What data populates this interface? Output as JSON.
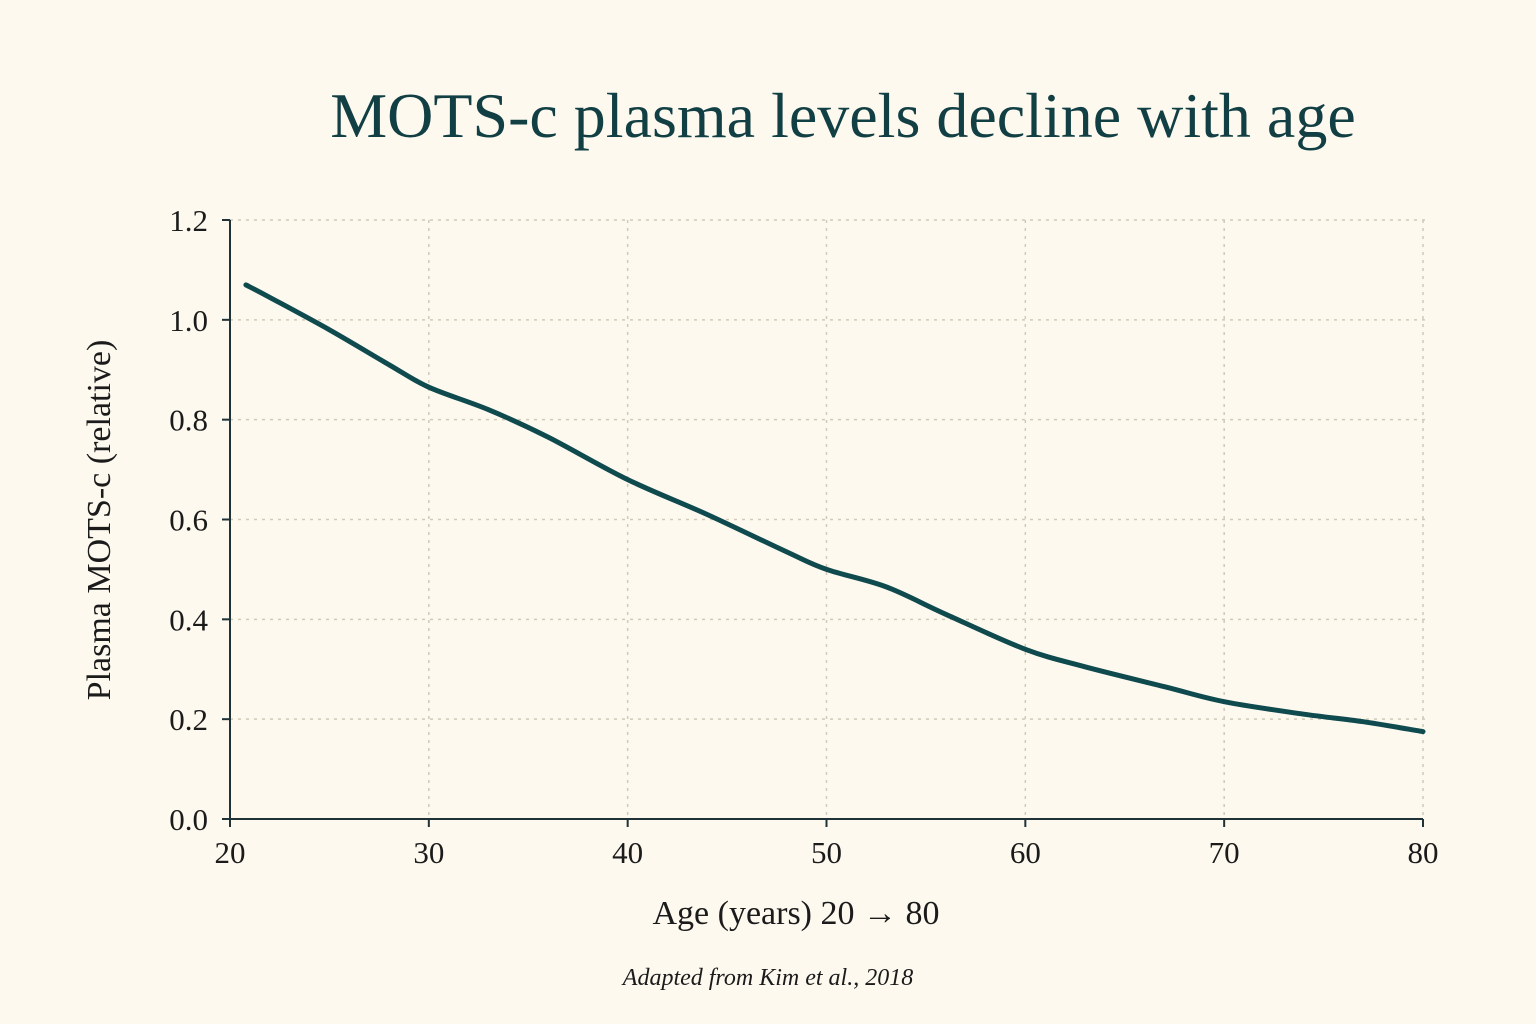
{
  "chart_data": {
    "type": "line",
    "title": "MOTS-c plasma levels decline with age",
    "xlabel": "Age (years) 20 → 80",
    "ylabel": "Plasma MOTS-c (relative)",
    "source_note": "Adapted from Kim et al., 2018",
    "xlim": [
      20,
      80
    ],
    "ylim": [
      0,
      1.2
    ],
    "x_ticks": [
      20,
      30,
      40,
      50,
      60,
      70,
      80
    ],
    "x_tick_labels": [
      "20",
      "30",
      "40",
      "50",
      "60",
      "70",
      "80"
    ],
    "y_ticks": [
      0,
      0.2,
      0.4,
      0.6,
      0.8,
      1.0,
      1.2
    ],
    "y_tick_labels": [
      "0.0",
      "0.2",
      "0.4",
      "0.6",
      "0.8",
      "1.0",
      "1.2"
    ],
    "grid": true,
    "legend": "none",
    "series": [
      {
        "color": "#0f4a4e",
        "x": [
          20.8,
          22,
          25,
          28,
          30,
          33,
          36,
          40,
          44,
          48,
          50,
          53,
          56,
          60,
          63,
          67,
          70,
          74,
          77,
          80
        ],
        "y": [
          1.07,
          1.045,
          0.98,
          0.91,
          0.865,
          0.82,
          0.765,
          0.68,
          0.61,
          0.535,
          0.5,
          0.465,
          0.41,
          0.34,
          0.305,
          0.265,
          0.235,
          0.21,
          0.195,
          0.175
        ]
      }
    ]
  },
  "colors": {
    "background": "#fdf9ef",
    "title": "#123f44",
    "axis": "#1e3238",
    "grid": "#cfcbb8"
  }
}
